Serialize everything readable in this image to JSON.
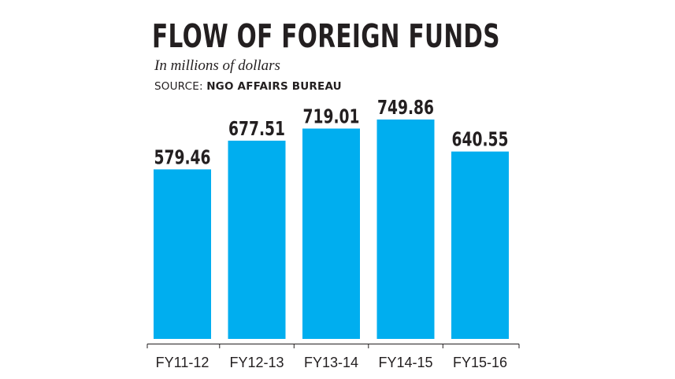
{
  "header": {
    "title": "FLOW OF FOREIGN FUNDS",
    "subtitle": "In millions of dollars",
    "source_prefix": "SOURCE: ",
    "source_name": "NGO AFFAIRS BUREAU"
  },
  "colors": {
    "bar": "#00aeef",
    "text": "#231f20"
  },
  "chart_data": {
    "type": "bar",
    "title": "FLOW OF FOREIGN FUNDS",
    "subtitle": "In millions of dollars",
    "categories": [
      "FY11-12",
      "FY12-13",
      "FY13-14",
      "FY14-15",
      "FY15-16"
    ],
    "values": [
      579.46,
      677.51,
      719.01,
      749.86,
      640.55
    ],
    "value_labels": [
      "579.46",
      "677.51",
      "719.01",
      "749.86",
      "640.55"
    ],
    "xlabel": "",
    "ylabel": "",
    "grid": false,
    "legend": "none"
  }
}
